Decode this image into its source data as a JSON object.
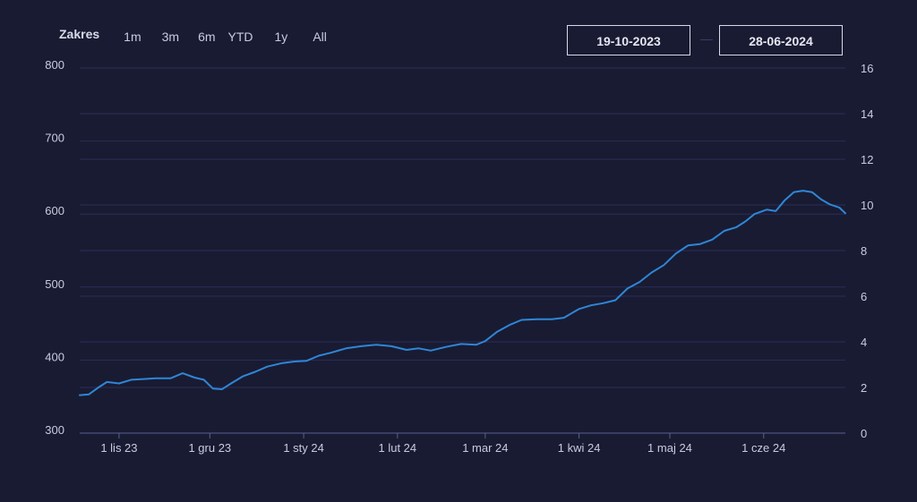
{
  "range_selector": {
    "label": "Zakres",
    "buttons": [
      "1m",
      "3m",
      "6m",
      "YTD",
      "1y",
      "All"
    ]
  },
  "date_range": {
    "from": "19-10-2023",
    "to": "28-06-2024"
  },
  "colors": {
    "background": "#191b32",
    "line": "#2f86d6",
    "grid": "#2a2d5a",
    "text": "#c9cbe0"
  },
  "chart_data": {
    "type": "line",
    "title": "",
    "xlabel": "",
    "ylabel": "",
    "x_range": [
      "2023-10-19",
      "2024-06-28"
    ],
    "ylim": [
      300,
      800
    ],
    "y_ticks": [
      300,
      400,
      500,
      600,
      700,
      800
    ],
    "y2lim": [
      0,
      16
    ],
    "y2_ticks": [
      0,
      2,
      4,
      6,
      8,
      10,
      12,
      14,
      16
    ],
    "x_ticks": [
      {
        "date": "2023-11-01",
        "label": "1 lis 23"
      },
      {
        "date": "2023-12-01",
        "label": "1 gru 23"
      },
      {
        "date": "2024-01-01",
        "label": "1 sty 24"
      },
      {
        "date": "2024-02-01",
        "label": "1 lut 24"
      },
      {
        "date": "2024-03-01",
        "label": "1 mar 24"
      },
      {
        "date": "2024-04-01",
        "label": "1 kwi 24"
      },
      {
        "date": "2024-05-01",
        "label": "1 maj 24"
      },
      {
        "date": "2024-06-01",
        "label": "1 cze 24"
      }
    ],
    "grid": true,
    "legend": "none",
    "series": [
      {
        "x": [
          "2023-10-19",
          "2023-10-22",
          "2023-10-25",
          "2023-10-28",
          "2023-11-01",
          "2023-11-05",
          "2023-11-09",
          "2023-11-13",
          "2023-11-18",
          "2023-11-22",
          "2023-11-26",
          "2023-11-29",
          "2023-12-02",
          "2023-12-05",
          "2023-12-08",
          "2023-12-12",
          "2023-12-16",
          "2023-12-20",
          "2023-12-25",
          "2023-12-29",
          "2024-01-02",
          "2024-01-06",
          "2024-01-10",
          "2024-01-15",
          "2024-01-20",
          "2024-01-25",
          "2024-01-30",
          "2024-02-04",
          "2024-02-08",
          "2024-02-12",
          "2024-02-17",
          "2024-02-22",
          "2024-02-27",
          "2024-03-01",
          "2024-03-05",
          "2024-03-09",
          "2024-03-13",
          "2024-03-18",
          "2024-03-23",
          "2024-03-27",
          "2024-04-01",
          "2024-04-05",
          "2024-04-09",
          "2024-04-13",
          "2024-04-17",
          "2024-04-21",
          "2024-04-25",
          "2024-04-29",
          "2024-05-03",
          "2024-05-07",
          "2024-05-11",
          "2024-05-15",
          "2024-05-19",
          "2024-05-23",
          "2024-05-26",
          "2024-05-29",
          "2024-06-02",
          "2024-06-05",
          "2024-06-08",
          "2024-06-11",
          "2024-06-14",
          "2024-06-17",
          "2024-06-20",
          "2024-06-23",
          "2024-06-26",
          "2024-06-28"
        ],
        "y": [
          352,
          353,
          362,
          370,
          368,
          373,
          374,
          375,
          375,
          382,
          376,
          373,
          361,
          360,
          368,
          378,
          384,
          391,
          396,
          398,
          399,
          406,
          410,
          416,
          419,
          421,
          419,
          414,
          416,
          413,
          418,
          422,
          421,
          426,
          439,
          448,
          455,
          456,
          456,
          458,
          470,
          475,
          478,
          482,
          498,
          507,
          520,
          530,
          546,
          557,
          559,
          565,
          577,
          582,
          590,
          600,
          606,
          604,
          619,
          630,
          632,
          630,
          620,
          613,
          609,
          601
        ]
      }
    ]
  }
}
